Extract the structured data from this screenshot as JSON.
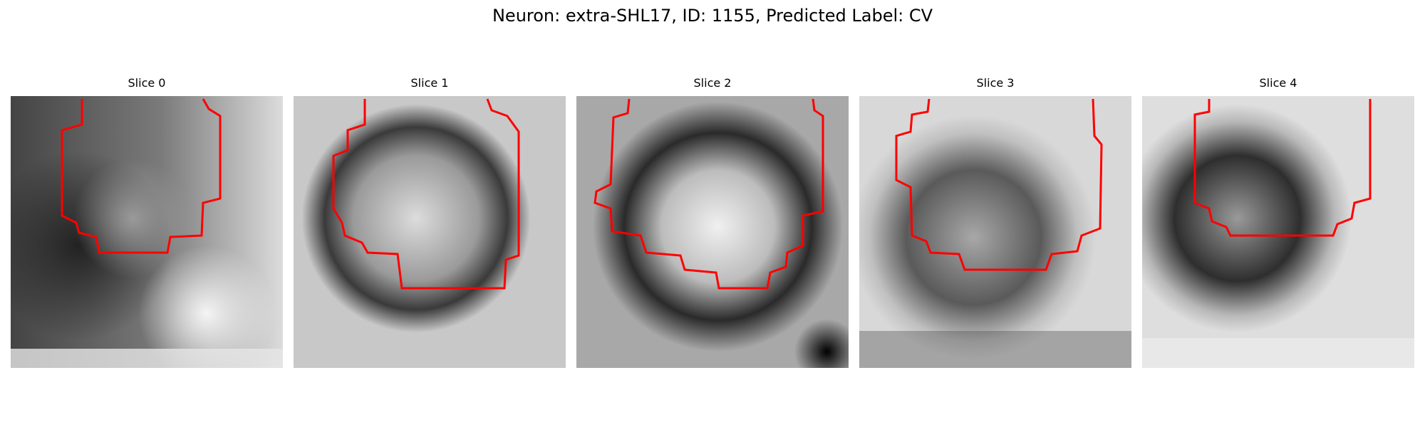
{
  "figure": {
    "title": "Neuron: extra-SHL17, ID: 1155, Predicted Label: CV"
  },
  "colors": {
    "contour": "#ff0000",
    "background": "#ffffff"
  },
  "slices": [
    {
      "title": "Slice 0"
    },
    {
      "title": "Slice 1"
    },
    {
      "title": "Slice 2"
    },
    {
      "title": "Slice 3"
    },
    {
      "title": "Slice 4"
    }
  ]
}
